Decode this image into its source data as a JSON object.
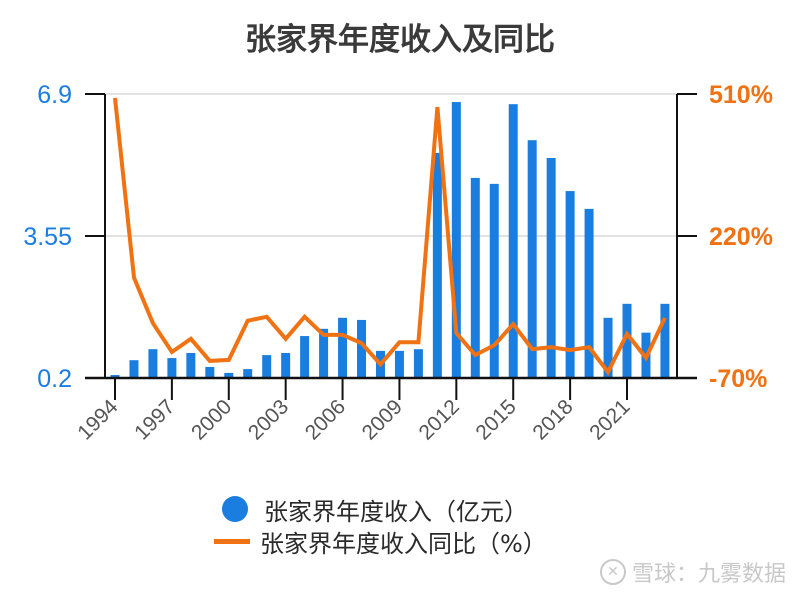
{
  "chart_data": {
    "type": "bar+line",
    "title": "张家界年度收入及同比",
    "categories": [
      "1994",
      "1995",
      "1996",
      "1997",
      "1998",
      "1999",
      "2000",
      "2001",
      "2002",
      "2003",
      "2004",
      "2005",
      "2006",
      "2007",
      "2008",
      "2009",
      "2010",
      "2011",
      "2012",
      "2013",
      "2014",
      "2015",
      "2016",
      "2017",
      "2018",
      "2019",
      "2020",
      "2021",
      "2022",
      "2023"
    ],
    "series": [
      {
        "name": "张家界年度收入（亿元）",
        "type": "bar",
        "axis": "left",
        "color": "#1a7de0",
        "values": [
          0.27,
          0.62,
          0.88,
          0.67,
          0.79,
          0.46,
          0.32,
          0.41,
          0.74,
          0.79,
          1.19,
          1.36,
          1.62,
          1.57,
          0.84,
          0.84,
          0.88,
          5.51,
          6.71,
          4.92,
          4.78,
          6.66,
          5.81,
          5.39,
          4.61,
          4.19,
          1.62,
          1.95,
          1.27,
          1.95
        ]
      },
      {
        "name": "张家界年度收入同比（%）",
        "type": "line",
        "axis": "right",
        "color": "#f07212",
        "values": [
          502,
          135,
          42,
          -17,
          10,
          -35,
          -33,
          47,
          55,
          10,
          55,
          18,
          18,
          1,
          -42,
          3,
          3,
          483,
          22,
          -23,
          -3,
          40,
          -11,
          -7,
          -13,
          -7,
          -58,
          20,
          -29,
          53
        ]
      }
    ],
    "left_axis": {
      "ticks": [
        "0.2",
        "3.55",
        "6.9"
      ],
      "ylim": [
        0.2,
        6.9
      ],
      "color": "#1a7de0"
    },
    "right_axis": {
      "ticks": [
        "-70%",
        "220%",
        "510%"
      ],
      "ylim": [
        -70,
        510
      ],
      "color": "#f07212"
    },
    "x_tick_labels": [
      "1994",
      "1997",
      "2000",
      "2003",
      "2006",
      "2009",
      "2012",
      "2015",
      "2018",
      "2021"
    ],
    "grid": true,
    "legend_position": "bottom"
  },
  "legend": {
    "bar_label": "张家界年度收入（亿元）",
    "line_label": "张家界年度收入同比（%）"
  },
  "watermark": {
    "icon": "snowball-logo-icon",
    "text": "雪球：九雾数据"
  }
}
